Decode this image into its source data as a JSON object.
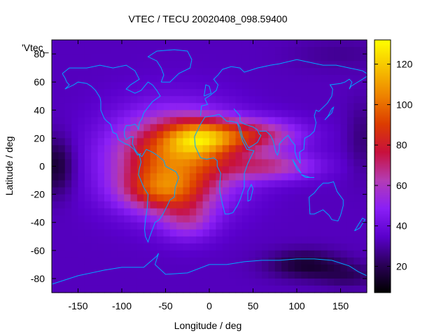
{
  "chart_data": {
    "type": "heatmap",
    "title": "VTEC / TECU 20020408_098.59400",
    "xlabel": "Longitude / deg",
    "ylabel": "Latitude / deg",
    "legend_label": "'Vtec_",
    "xlim": [
      -180,
      180
    ],
    "ylim": [
      -90,
      90
    ],
    "xticks": [
      -150,
      -100,
      -50,
      0,
      50,
      100,
      150
    ],
    "xtick_labels": [
      "-150",
      "-100",
      "-50",
      "0",
      "50",
      "100",
      "150"
    ],
    "yticks": [
      80,
      60,
      40,
      20,
      0,
      -20,
      -40,
      -60,
      -80
    ],
    "ytick_labels": [
      "80",
      "60",
      "40",
      "20",
      "0",
      "-20",
      "-40",
      "-60",
      "-80"
    ],
    "colorbar": {
      "range": [
        7,
        132
      ],
      "ticks": [
        120,
        100,
        80,
        60,
        40,
        20
      ],
      "tick_labels": [
        "120",
        "100",
        "80",
        "60",
        "40",
        "20"
      ],
      "palette": [
        "#000000",
        "#2a0058",
        "#5a00cc",
        "#8a1ff6",
        "#b43cb4",
        "#c8103c",
        "#dc3c00",
        "#ee8200",
        "#f6c200",
        "#ffff00"
      ]
    },
    "background_value": 33,
    "features": [
      {
        "name": "main-crest",
        "lon": -40,
        "lat": 5,
        "amp": 66,
        "sig_lon": 48,
        "sig_lat": 22
      },
      {
        "name": "northern-crest",
        "lon": -10,
        "lat": 20,
        "amp": 42,
        "sig_lon": 28,
        "sig_lat": 9
      },
      {
        "name": "southern-crest",
        "lon": -55,
        "lat": -18,
        "amp": 32,
        "sig_lon": 32,
        "sig_lat": 10
      },
      {
        "name": "north-extension",
        "lon": 50,
        "lat": 22,
        "amp": 38,
        "sig_lon": 38,
        "sig_lat": 8
      },
      {
        "name": "equator-extension",
        "lon": 70,
        "lat": 0,
        "amp": 30,
        "sig_lon": 38,
        "sig_lat": 7
      },
      {
        "name": "southwest-lobe",
        "lon": -25,
        "lat": -38,
        "amp": 22,
        "sig_lon": 22,
        "sig_lat": 10
      },
      {
        "name": "antarctic-low-east",
        "lon": 110,
        "lat": -70,
        "amp": -18,
        "sig_lon": 30,
        "sig_lat": 7
      },
      {
        "name": "antarctic-low-west",
        "lon": 160,
        "lat": -78,
        "amp": -10,
        "sig_lon": 25,
        "sig_lat": 6
      },
      {
        "name": "pacific-low",
        "lon": -175,
        "lat": 0,
        "amp": -18,
        "sig_lon": 14,
        "sig_lat": 14
      },
      {
        "name": "east-pacific-low",
        "lon": 175,
        "lat": 20,
        "amp": -8,
        "sig_lon": 12,
        "sig_lat": 18
      },
      {
        "name": "north-polar-low",
        "lon": 150,
        "lat": 80,
        "amp": -5,
        "sig_lon": 40,
        "sig_lat": 8
      }
    ],
    "coastline_color": "#00a8ff"
  }
}
